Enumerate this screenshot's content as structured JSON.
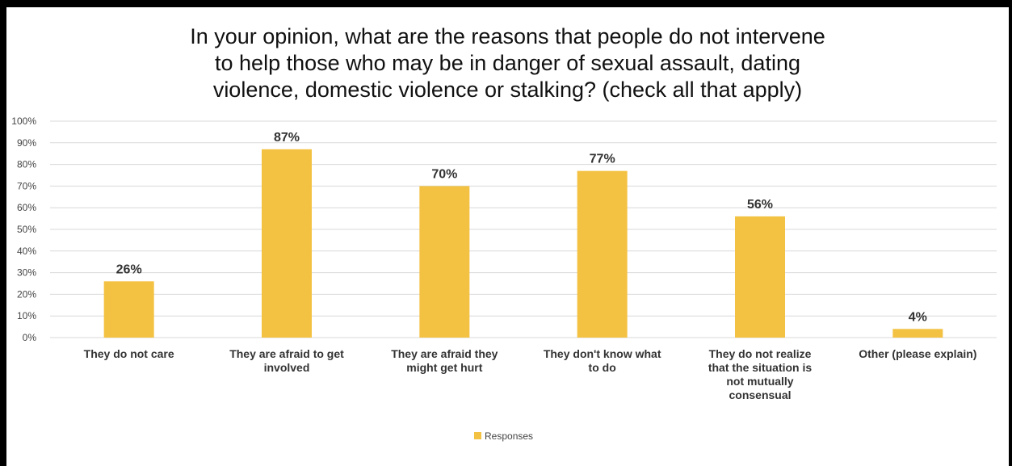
{
  "chart_data": {
    "type": "bar",
    "title": "In your opinion, what are the reasons that people do not intervene\nto help those who may be in danger of sexual assault, dating\nviolence, domestic violence or stalking? (check all that apply)",
    "categories": [
      "They do not care",
      "They are afraid to get involved",
      "They are afraid they might get hurt",
      "They don't know what to do",
      "They do not realize that the situation is not mutually consensual",
      "Other (please explain)"
    ],
    "category_lines": [
      [
        "They do not care"
      ],
      [
        "They are afraid to get",
        "involved"
      ],
      [
        "They are afraid they",
        "might get hurt"
      ],
      [
        "They don't know what",
        "to do"
      ],
      [
        "They do not realize",
        "that the situation is",
        "not mutually",
        "consensual"
      ],
      [
        "Other (please explain)"
      ]
    ],
    "series": [
      {
        "name": "Responses",
        "values": [
          26,
          87,
          70,
          77,
          56,
          4
        ],
        "data_labels": [
          "26%",
          "87%",
          "70%",
          "77%",
          "56%",
          "4%"
        ],
        "color": "#F4C242"
      }
    ],
    "y_ticks": [
      "0%",
      "10%",
      "20%",
      "30%",
      "40%",
      "50%",
      "60%",
      "70%",
      "80%",
      "90%",
      "100%"
    ],
    "ylim": [
      0,
      100
    ],
    "xlabel": "",
    "ylabel": "",
    "grid": true,
    "gridline_color": "#D9D9D9",
    "legend": {
      "position": "bottom",
      "entries": [
        "Responses"
      ]
    }
  }
}
